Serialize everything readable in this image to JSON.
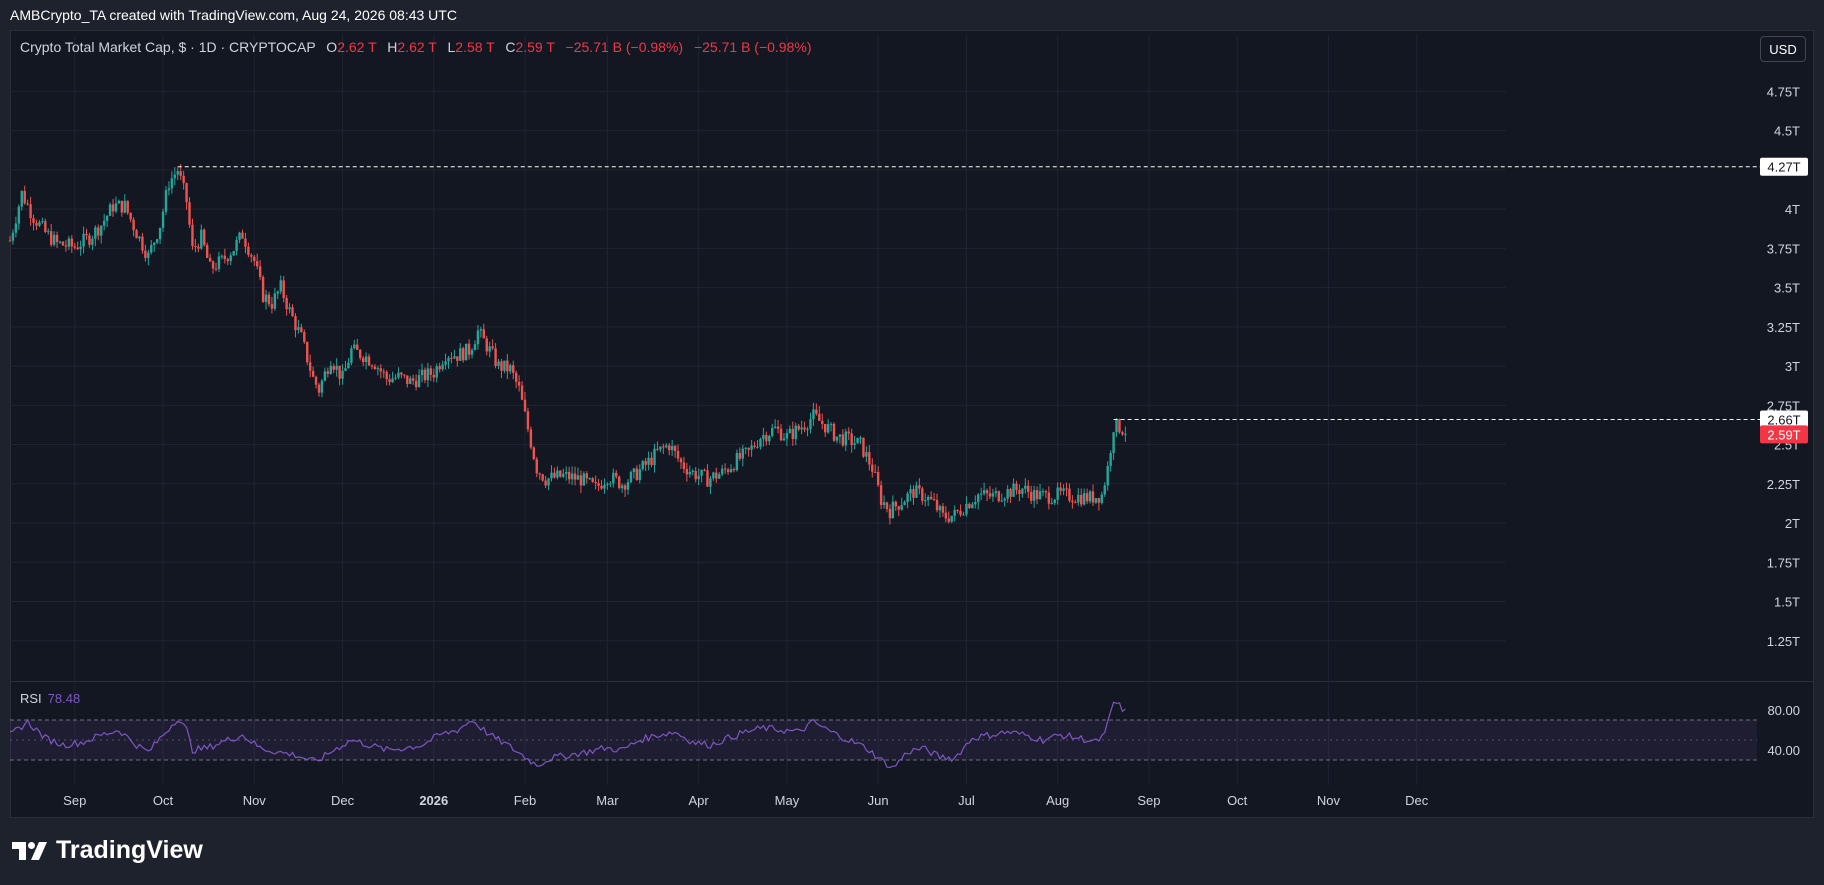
{
  "header": {
    "attribution": "AMBCrypto_TA created with TradingView.com, Aug 24, 2026 08:43 UTC"
  },
  "legend": {
    "symbol": "Crypto Total Market Cap, $ · 1D · CRYPTOCAP",
    "open_label": "O",
    "open": "2.62 T",
    "high_label": "H",
    "high": "2.62 T",
    "low_label": "L",
    "low": "2.58 T",
    "close_label": "C",
    "close": "2.59 T",
    "change": "−25.71 B (−0.98%)",
    "change2": "−25.71 B (−0.98%)"
  },
  "currency_button": "USD",
  "brand": {
    "name": "TradingView"
  },
  "colors": {
    "up": "#26a69a",
    "down": "#ef5350",
    "rsi": "#7e57c2",
    "background": "#131722",
    "grid": "#1f2431"
  },
  "chart_data": [
    {
      "type": "candlestick",
      "title": "Crypto Total Market Cap",
      "y_unit": "T (USD)",
      "ylim": [
        1.0,
        4.95
      ],
      "y_ticks": [
        "4.75T",
        "4.5T",
        "4.25T",
        "4T",
        "3.75T",
        "3.5T",
        "3.25T",
        "3T",
        "2.75T",
        "2.5T",
        "2.25T",
        "2T",
        "1.75T",
        "1.5T",
        "1.25T"
      ],
      "x_ticks": [
        "Sep",
        "Oct",
        "Nov",
        "Dec",
        "2026",
        "Feb",
        "Mar",
        "Apr",
        "May",
        "Jun",
        "Jul",
        "Aug",
        "Sep",
        "Oct",
        "Nov",
        "Dec"
      ],
      "x_start": "2025-08-10",
      "x_end": "2026-12-31",
      "grid": true,
      "series": [
        {
          "points": [
            {
              "x": "2025-08-10",
              "y": 3.8
            },
            {
              "x": "2025-08-14",
              "y": 4.1
            },
            {
              "x": "2025-08-18",
              "y": 3.95
            },
            {
              "x": "2025-08-22",
              "y": 3.85
            },
            {
              "x": "2025-08-26",
              "y": 3.78
            },
            {
              "x": "2025-09-01",
              "y": 3.76
            },
            {
              "x": "2025-09-06",
              "y": 3.82
            },
            {
              "x": "2025-09-10",
              "y": 3.9
            },
            {
              "x": "2025-09-14",
              "y": 4.02
            },
            {
              "x": "2025-09-18",
              "y": 4.02
            },
            {
              "x": "2025-09-22",
              "y": 3.85
            },
            {
              "x": "2025-09-26",
              "y": 3.7
            },
            {
              "x": "2025-09-30",
              "y": 3.9
            },
            {
              "x": "2025-10-03",
              "y": 4.17
            },
            {
              "x": "2025-10-06",
              "y": 4.25
            },
            {
              "x": "2025-10-09",
              "y": 4.05
            },
            {
              "x": "2025-10-11",
              "y": 3.74
            },
            {
              "x": "2025-10-14",
              "y": 3.82
            },
            {
              "x": "2025-10-17",
              "y": 3.62
            },
            {
              "x": "2025-10-21",
              "y": 3.67
            },
            {
              "x": "2025-10-25",
              "y": 3.75
            },
            {
              "x": "2025-10-28",
              "y": 3.84
            },
            {
              "x": "2025-11-01",
              "y": 3.67
            },
            {
              "x": "2025-11-04",
              "y": 3.45
            },
            {
              "x": "2025-11-07",
              "y": 3.4
            },
            {
              "x": "2025-11-10",
              "y": 3.5
            },
            {
              "x": "2025-11-13",
              "y": 3.35
            },
            {
              "x": "2025-11-17",
              "y": 3.18
            },
            {
              "x": "2025-11-21",
              "y": 2.92
            },
            {
              "x": "2025-11-23",
              "y": 2.85
            },
            {
              "x": "2025-11-27",
              "y": 3.05
            },
            {
              "x": "2025-12-01",
              "y": 2.92
            },
            {
              "x": "2025-12-04",
              "y": 3.1
            },
            {
              "x": "2025-12-08",
              "y": 3.07
            },
            {
              "x": "2025-12-12",
              "y": 3.02
            },
            {
              "x": "2025-12-16",
              "y": 2.92
            },
            {
              "x": "2025-12-20",
              "y": 2.93
            },
            {
              "x": "2025-12-24",
              "y": 2.9
            },
            {
              "x": "2025-12-28",
              "y": 2.93
            },
            {
              "x": "2026-01-01",
              "y": 2.96
            },
            {
              "x": "2026-01-05",
              "y": 3.08
            },
            {
              "x": "2026-01-09",
              "y": 3.07
            },
            {
              "x": "2026-01-13",
              "y": 3.1
            },
            {
              "x": "2026-01-16",
              "y": 3.22
            },
            {
              "x": "2026-01-20",
              "y": 3.1
            },
            {
              "x": "2026-01-23",
              "y": 3.0
            },
            {
              "x": "2026-01-27",
              "y": 2.98
            },
            {
              "x": "2026-01-30",
              "y": 2.85
            },
            {
              "x": "2026-02-02",
              "y": 2.6
            },
            {
              "x": "2026-02-05",
              "y": 2.35
            },
            {
              "x": "2026-02-08",
              "y": 2.28
            },
            {
              "x": "2026-02-14",
              "y": 2.3
            },
            {
              "x": "2026-02-20",
              "y": 2.28
            },
            {
              "x": "2026-02-25",
              "y": 2.22
            },
            {
              "x": "2026-03-01",
              "y": 2.3
            },
            {
              "x": "2026-03-06",
              "y": 2.25
            },
            {
              "x": "2026-03-10",
              "y": 2.3
            },
            {
              "x": "2026-03-14",
              "y": 2.37
            },
            {
              "x": "2026-03-18",
              "y": 2.45
            },
            {
              "x": "2026-03-22",
              "y": 2.5
            },
            {
              "x": "2026-03-26",
              "y": 2.38
            },
            {
              "x": "2026-03-30",
              "y": 2.32
            },
            {
              "x": "2026-04-04",
              "y": 2.28
            },
            {
              "x": "2026-04-09",
              "y": 2.32
            },
            {
              "x": "2026-04-14",
              "y": 2.4
            },
            {
              "x": "2026-04-18",
              "y": 2.45
            },
            {
              "x": "2026-04-22",
              "y": 2.55
            },
            {
              "x": "2026-04-27",
              "y": 2.6
            },
            {
              "x": "2026-05-01",
              "y": 2.55
            },
            {
              "x": "2026-05-05",
              "y": 2.6
            },
            {
              "x": "2026-05-10",
              "y": 2.68
            },
            {
              "x": "2026-05-14",
              "y": 2.62
            },
            {
              "x": "2026-05-18",
              "y": 2.55
            },
            {
              "x": "2026-05-22",
              "y": 2.53
            },
            {
              "x": "2026-05-26",
              "y": 2.5
            },
            {
              "x": "2026-05-30",
              "y": 2.35
            },
            {
              "x": "2026-06-02",
              "y": 2.15
            },
            {
              "x": "2026-06-05",
              "y": 2.08
            },
            {
              "x": "2026-06-09",
              "y": 2.14
            },
            {
              "x": "2026-06-13",
              "y": 2.2
            },
            {
              "x": "2026-06-17",
              "y": 2.17
            },
            {
              "x": "2026-06-20",
              "y": 2.12
            },
            {
              "x": "2026-06-23",
              "y": 2.04
            },
            {
              "x": "2026-06-27",
              "y": 2.05
            },
            {
              "x": "2026-07-01",
              "y": 2.12
            },
            {
              "x": "2026-07-05",
              "y": 2.18
            },
            {
              "x": "2026-07-10",
              "y": 2.17
            },
            {
              "x": "2026-07-15",
              "y": 2.2
            },
            {
              "x": "2026-07-20",
              "y": 2.22
            },
            {
              "x": "2026-07-24",
              "y": 2.18
            },
            {
              "x": "2026-07-28",
              "y": 2.17
            },
            {
              "x": "2026-08-02",
              "y": 2.18
            },
            {
              "x": "2026-08-07",
              "y": 2.17
            },
            {
              "x": "2026-08-12",
              "y": 2.16
            },
            {
              "x": "2026-08-16",
              "y": 2.18
            },
            {
              "x": "2026-08-18",
              "y": 2.35
            },
            {
              "x": "2026-08-20",
              "y": 2.62
            },
            {
              "x": "2026-08-22",
              "y": 2.61
            },
            {
              "x": "2026-08-24",
              "y": 2.59
            }
          ]
        }
      ],
      "levels": [
        {
          "value": 4.27,
          "label": "4.27T",
          "from": "2025-10-06"
        },
        {
          "value": 2.66,
          "label": "2.66T",
          "from": "2026-08-20"
        }
      ],
      "last_price": {
        "value": 2.59,
        "label": "2.59T"
      }
    },
    {
      "type": "line",
      "title": "RSI",
      "current_value": "78.48",
      "ylim": [
        5,
        100
      ],
      "y_ticks": [
        "80.00",
        "40.00"
      ],
      "band": [
        30,
        70
      ],
      "middle": 50,
      "series": [
        {
          "points": [
            {
              "x": "2025-08-10",
              "y": 55
            },
            {
              "x": "2025-08-16",
              "y": 68
            },
            {
              "x": "2025-08-22",
              "y": 52
            },
            {
              "x": "2025-08-28",
              "y": 45
            },
            {
              "x": "2025-09-04",
              "y": 48
            },
            {
              "x": "2025-09-10",
              "y": 55
            },
            {
              "x": "2025-09-16",
              "y": 60
            },
            {
              "x": "2025-09-22",
              "y": 45
            },
            {
              "x": "2025-09-26",
              "y": 38
            },
            {
              "x": "2025-10-01",
              "y": 55
            },
            {
              "x": "2025-10-06",
              "y": 72
            },
            {
              "x": "2025-10-09",
              "y": 60
            },
            {
              "x": "2025-10-11",
              "y": 40
            },
            {
              "x": "2025-10-16",
              "y": 42
            },
            {
              "x": "2025-10-21",
              "y": 48
            },
            {
              "x": "2025-10-28",
              "y": 55
            },
            {
              "x": "2025-11-03",
              "y": 42
            },
            {
              "x": "2025-11-09",
              "y": 38
            },
            {
              "x": "2025-11-15",
              "y": 35
            },
            {
              "x": "2025-11-22",
              "y": 28
            },
            {
              "x": "2025-11-28",
              "y": 40
            },
            {
              "x": "2025-12-04",
              "y": 50
            },
            {
              "x": "2025-12-10",
              "y": 45
            },
            {
              "x": "2025-12-16",
              "y": 40
            },
            {
              "x": "2025-12-22",
              "y": 42
            },
            {
              "x": "2025-12-28",
              "y": 45
            },
            {
              "x": "2026-01-03",
              "y": 55
            },
            {
              "x": "2026-01-09",
              "y": 60
            },
            {
              "x": "2026-01-14",
              "y": 70
            },
            {
              "x": "2026-01-20",
              "y": 55
            },
            {
              "x": "2026-01-26",
              "y": 45
            },
            {
              "x": "2026-01-31",
              "y": 35
            },
            {
              "x": "2026-02-05",
              "y": 25
            },
            {
              "x": "2026-02-10",
              "y": 32
            },
            {
              "x": "2026-02-16",
              "y": 35
            },
            {
              "x": "2026-02-22",
              "y": 38
            },
            {
              "x": "2026-02-28",
              "y": 42
            },
            {
              "x": "2026-03-06",
              "y": 40
            },
            {
              "x": "2026-03-12",
              "y": 50
            },
            {
              "x": "2026-03-18",
              "y": 55
            },
            {
              "x": "2026-03-24",
              "y": 58
            },
            {
              "x": "2026-03-30",
              "y": 48
            },
            {
              "x": "2026-04-05",
              "y": 45
            },
            {
              "x": "2026-04-11",
              "y": 52
            },
            {
              "x": "2026-04-17",
              "y": 58
            },
            {
              "x": "2026-04-23",
              "y": 62
            },
            {
              "x": "2026-04-29",
              "y": 60
            },
            {
              "x": "2026-05-05",
              "y": 58
            },
            {
              "x": "2026-05-10",
              "y": 68
            },
            {
              "x": "2026-05-16",
              "y": 58
            },
            {
              "x": "2026-05-22",
              "y": 50
            },
            {
              "x": "2026-05-28",
              "y": 42
            },
            {
              "x": "2026-06-02",
              "y": 30
            },
            {
              "x": "2026-06-06",
              "y": 22
            },
            {
              "x": "2026-06-11",
              "y": 38
            },
            {
              "x": "2026-06-16",
              "y": 42
            },
            {
              "x": "2026-06-22",
              "y": 33
            },
            {
              "x": "2026-06-27",
              "y": 32
            },
            {
              "x": "2026-07-03",
              "y": 52
            },
            {
              "x": "2026-07-09",
              "y": 55
            },
            {
              "x": "2026-07-15",
              "y": 58
            },
            {
              "x": "2026-07-21",
              "y": 55
            },
            {
              "x": "2026-07-27",
              "y": 50
            },
            {
              "x": "2026-08-02",
              "y": 55
            },
            {
              "x": "2026-08-08",
              "y": 52
            },
            {
              "x": "2026-08-14",
              "y": 48
            },
            {
              "x": "2026-08-17",
              "y": 55
            },
            {
              "x": "2026-08-20",
              "y": 88
            },
            {
              "x": "2026-08-22",
              "y": 84
            },
            {
              "x": "2026-08-24",
              "y": 78.48
            }
          ]
        }
      ]
    }
  ]
}
